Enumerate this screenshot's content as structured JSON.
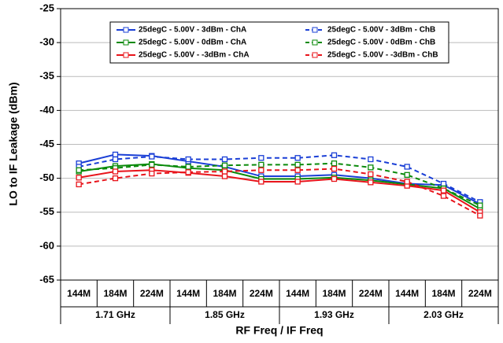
{
  "chart_data": {
    "type": "line",
    "xlabel": "RF Freq / IF Freq",
    "ylabel": "LO to IF Leakage (dBm)",
    "categories": [
      "144M",
      "184M",
      "224M",
      "144M",
      "184M",
      "224M",
      "144M",
      "184M",
      "224M",
      "144M",
      "184M",
      "224M"
    ],
    "category_groups": [
      "1.71 GHz",
      "1.85 GHz",
      "1.93 GHz",
      "2.03 GHz"
    ],
    "ylim": [
      -65,
      -25
    ],
    "yticks": [
      -65,
      -60,
      -55,
      -50,
      -45,
      -40,
      -35,
      -30,
      -25
    ],
    "grid": true,
    "legend": "top",
    "series": [
      {
        "name": "25degC - 5.00V - 3dBm - ChA",
        "color": "#1a3fd6",
        "style": "solid",
        "values": [
          -47.8,
          -46.5,
          -46.7,
          -47.5,
          -48.3,
          -49.7,
          -49.7,
          -49.5,
          -50.0,
          -50.8,
          -51.0,
          -53.8
        ]
      },
      {
        "name": "25degC - 5.00V - 3dBm - ChB",
        "color": "#1a3fd6",
        "style": "dashed",
        "values": [
          -48.3,
          -47.2,
          -46.8,
          -47.2,
          -47.2,
          -47.0,
          -47.0,
          -46.6,
          -47.2,
          -48.3,
          -50.8,
          -53.5
        ]
      },
      {
        "name": "25degC - 5.00V - 0dBm - ChA",
        "color": "#0a8a0a",
        "style": "solid",
        "values": [
          -49.0,
          -48.2,
          -47.9,
          -48.5,
          -48.8,
          -50.1,
          -50.1,
          -49.9,
          -50.3,
          -50.9,
          -51.5,
          -54.5
        ]
      },
      {
        "name": "25degC - 5.00V - 0dBm - ChB",
        "color": "#0a8a0a",
        "style": "dashed",
        "values": [
          -48.8,
          -48.5,
          -48.0,
          -48.3,
          -48.1,
          -48.0,
          -48.0,
          -47.8,
          -48.4,
          -49.5,
          -51.5,
          -54.0
        ]
      },
      {
        "name": "25degC - 5.00V - -3dBm - ChA",
        "color": "#e8141b",
        "style": "solid",
        "values": [
          -49.9,
          -49.0,
          -48.8,
          -49.2,
          -49.7,
          -50.5,
          -50.5,
          -50.1,
          -50.6,
          -51.1,
          -51.8,
          -55.0
        ]
      },
      {
        "name": "25degC - 5.00V - -3dBm - ChB",
        "color": "#e8141b",
        "style": "dashed",
        "values": [
          -50.9,
          -50.0,
          -49.3,
          -49.1,
          -49.0,
          -48.8,
          -48.8,
          -48.6,
          -49.4,
          -50.5,
          -52.6,
          -55.5
        ]
      }
    ]
  }
}
